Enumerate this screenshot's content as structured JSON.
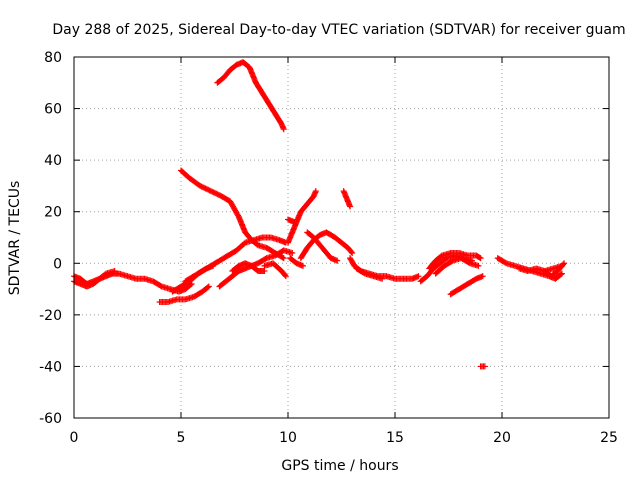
{
  "chart_data": {
    "type": "scatter",
    "title": "Day 288 of 2025, Sidereal Day-to-day VTEC variation (SDTVAR) for receiver guam",
    "xlabel": "GPS time / hours",
    "ylabel": "SDTVAR / TECUs",
    "xlim": [
      0,
      25
    ],
    "ylim": [
      -60,
      80
    ],
    "xticks": [
      0,
      5,
      10,
      15,
      20,
      25
    ],
    "yticks": [
      -60,
      -40,
      -20,
      0,
      20,
      40,
      60,
      80
    ],
    "grid": true,
    "marker": "+",
    "series": [
      {
        "name": "SDTVAR",
        "color": "#ff0000",
        "tracks": [
          [
            [
              6.7,
              70
            ],
            [
              7.0,
              72
            ],
            [
              7.3,
              75
            ],
            [
              7.6,
              77
            ],
            [
              7.9,
              78
            ],
            [
              8.2,
              76
            ],
            [
              8.5,
              70
            ],
            [
              8.8,
              66
            ],
            [
              9.1,
              62
            ],
            [
              9.4,
              58
            ],
            [
              9.7,
              54
            ],
            [
              9.8,
              52
            ]
          ],
          [
            [
              5.0,
              36
            ],
            [
              5.4,
              33
            ],
            [
              5.9,
              30
            ],
            [
              6.4,
              28
            ],
            [
              6.9,
              26
            ],
            [
              7.3,
              24
            ],
            [
              7.7,
              18
            ],
            [
              8.0,
              12
            ],
            [
              8.3,
              9
            ],
            [
              8.6,
              7
            ],
            [
              9.0,
              6
            ],
            [
              9.4,
              4
            ],
            [
              9.8,
              2
            ]
          ],
          [
            [
              10.0,
              8
            ],
            [
              10.2,
              12
            ],
            [
              10.4,
              16
            ],
            [
              10.6,
              20
            ],
            [
              10.8,
              22
            ],
            [
              11.0,
              24
            ],
            [
              11.2,
              26
            ],
            [
              11.3,
              28
            ]
          ],
          [
            [
              12.6,
              28
            ],
            [
              12.8,
              24
            ],
            [
              12.9,
              22
            ]
          ],
          [
            [
              10.0,
              17
            ],
            [
              10.3,
              16
            ]
          ],
          [
            [
              10.6,
              2
            ],
            [
              10.9,
              6
            ],
            [
              11.2,
              9
            ],
            [
              11.5,
              11
            ],
            [
              11.8,
              12
            ],
            [
              12.2,
              10
            ],
            [
              12.5,
              8
            ],
            [
              12.8,
              6
            ],
            [
              13.0,
              4
            ]
          ],
          [
            [
              10.9,
              12
            ],
            [
              11.2,
              10
            ],
            [
              11.6,
              6
            ],
            [
              12.0,
              2
            ],
            [
              12.3,
              1
            ]
          ],
          [
            [
              0.0,
              -5
            ],
            [
              0.3,
              -6
            ],
            [
              0.6,
              -8
            ],
            [
              0.9,
              -7
            ],
            [
              1.2,
              -6
            ],
            [
              1.5,
              -5
            ],
            [
              1.8,
              -4
            ],
            [
              2.1,
              -4
            ],
            [
              2.5,
              -5
            ],
            [
              2.9,
              -6
            ],
            [
              3.3,
              -6
            ],
            [
              3.7,
              -7
            ],
            [
              4.1,
              -9
            ],
            [
              4.5,
              -10
            ],
            [
              4.9,
              -11
            ],
            [
              5.2,
              -10
            ],
            [
              5.5,
              -8
            ]
          ],
          [
            [
              0.0,
              -7
            ],
            [
              0.3,
              -8
            ],
            [
              0.6,
              -9
            ],
            [
              0.9,
              -8
            ],
            [
              1.2,
              -6
            ],
            [
              1.5,
              -4
            ],
            [
              1.9,
              -3
            ]
          ],
          [
            [
              4.0,
              -15
            ],
            [
              4.4,
              -15
            ],
            [
              4.8,
              -14
            ],
            [
              5.2,
              -14
            ],
            [
              5.6,
              -13
            ],
            [
              6.0,
              -11
            ],
            [
              6.3,
              -9
            ]
          ],
          [
            [
              4.6,
              -11
            ],
            [
              5.0,
              -9
            ],
            [
              5.4,
              -7
            ],
            [
              5.8,
              -4
            ],
            [
              6.2,
              -2
            ],
            [
              6.5,
              -1
            ]
          ],
          [
            [
              5.2,
              -7
            ],
            [
              5.6,
              -5
            ],
            [
              6.0,
              -3
            ],
            [
              6.4,
              -1
            ],
            [
              6.8,
              1
            ],
            [
              7.2,
              3
            ],
            [
              7.6,
              5
            ],
            [
              8.0,
              8
            ],
            [
              8.4,
              9
            ],
            [
              8.8,
              10
            ],
            [
              9.2,
              10
            ],
            [
              9.6,
              9
            ],
            [
              9.9,
              8
            ]
          ],
          [
            [
              6.8,
              -9
            ],
            [
              7.1,
              -7
            ],
            [
              7.4,
              -5
            ],
            [
              7.7,
              -3
            ],
            [
              8.0,
              -2
            ],
            [
              8.3,
              -1
            ],
            [
              8.6,
              0
            ],
            [
              9.0,
              2
            ],
            [
              9.4,
              3
            ],
            [
              9.8,
              5
            ],
            [
              10.2,
              4
            ]
          ],
          [
            [
              7.4,
              -3
            ],
            [
              7.7,
              -1
            ],
            [
              8.0,
              0
            ],
            [
              8.3,
              -1
            ],
            [
              8.6,
              -3
            ],
            [
              8.9,
              -3
            ]
          ],
          [
            [
              8.9,
              -1
            ],
            [
              9.3,
              0
            ],
            [
              9.7,
              -3
            ],
            [
              9.9,
              -5
            ]
          ],
          [
            [
              10.1,
              2
            ],
            [
              10.4,
              0
            ],
            [
              10.7,
              -1
            ]
          ],
          [
            [
              12.9,
              2
            ],
            [
              13.1,
              -1
            ],
            [
              13.4,
              -3
            ],
            [
              13.8,
              -4
            ],
            [
              14.2,
              -5
            ],
            [
              14.6,
              -5
            ],
            [
              15.0,
              -6
            ],
            [
              15.4,
              -6
            ],
            [
              15.8,
              -6
            ],
            [
              16.1,
              -5
            ]
          ],
          [
            [
              13.2,
              -2
            ],
            [
              13.6,
              -4
            ],
            [
              14.0,
              -5
            ],
            [
              14.4,
              -6
            ]
          ],
          [
            [
              16.2,
              -7
            ],
            [
              16.5,
              -5
            ],
            [
              16.8,
              -2
            ],
            [
              17.1,
              0
            ],
            [
              17.4,
              2
            ],
            [
              17.8,
              3
            ],
            [
              18.2,
              2
            ],
            [
              18.6,
              1
            ]
          ],
          [
            [
              16.6,
              -2
            ],
            [
              16.9,
              1
            ],
            [
              17.2,
              3
            ],
            [
              17.6,
              4
            ],
            [
              18.0,
              4
            ],
            [
              18.4,
              3
            ],
            [
              18.8,
              3
            ],
            [
              19.0,
              2
            ]
          ],
          [
            [
              16.9,
              -4
            ],
            [
              17.3,
              -1
            ],
            [
              17.7,
              1
            ],
            [
              18.1,
              2
            ],
            [
              18.5,
              0
            ],
            [
              18.9,
              -1
            ]
          ],
          [
            [
              17.6,
              -12
            ],
            [
              18.0,
              -10
            ],
            [
              18.4,
              -8
            ],
            [
              18.8,
              -6
            ],
            [
              19.1,
              -5
            ]
          ],
          [
            [
              19.0,
              -40
            ],
            [
              19.2,
              -40
            ]
          ],
          [
            [
              19.8,
              2
            ],
            [
              20.2,
              0
            ],
            [
              20.6,
              -1
            ],
            [
              21.0,
              -2
            ],
            [
              21.4,
              -3
            ],
            [
              21.8,
              -4
            ],
            [
              22.2,
              -5
            ],
            [
              22.5,
              -6
            ],
            [
              22.8,
              -4
            ]
          ],
          [
            [
              20.8,
              -2
            ],
            [
              21.2,
              -3
            ],
            [
              21.6,
              -2
            ],
            [
              22.0,
              -3
            ],
            [
              22.4,
              -2
            ],
            [
              22.8,
              -1
            ]
          ],
          [
            [
              22.0,
              -3
            ],
            [
              22.3,
              -5
            ],
            [
              22.6,
              -3
            ],
            [
              22.9,
              0
            ]
          ]
        ]
      }
    ]
  },
  "colors": {
    "marker": "#ff0000",
    "grid": "#a0a0a0",
    "axis": "#000000",
    "background": "#ffffff"
  }
}
